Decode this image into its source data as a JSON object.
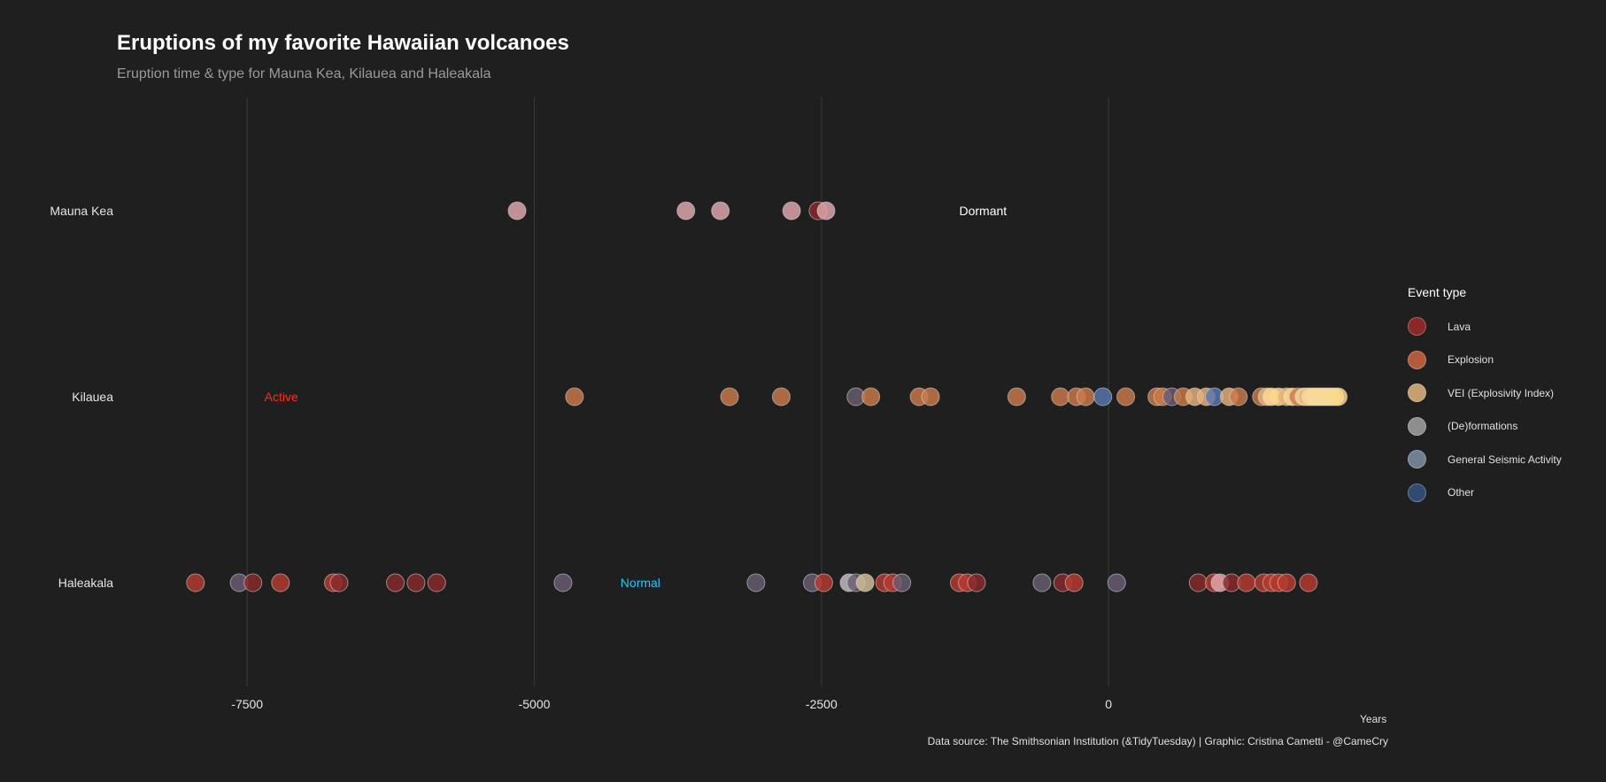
{
  "chart_data": {
    "type": "scatter",
    "title": "Eruptions of my favorite Hawaiian volcanoes",
    "subtitle": "Eruption time & type for Mauna Kea, Kilauea and Haleakala",
    "xlabel": "Years",
    "caption": "Data source: The Smithsonian Institution (&TidyTuesday) | Graphic: Cristina Cametti - @CameCry",
    "xlim": [
      -8650,
      2450
    ],
    "x_ticks": [
      -7500,
      -5000,
      -2500,
      0
    ],
    "x_tick_labels": [
      "-7500",
      "-5000",
      "-2500",
      "0"
    ],
    "grid": true,
    "categories": [
      "Mauna Kea",
      "Kilauea",
      "Haleakala"
    ],
    "legend": {
      "title": "Event type",
      "position": "right",
      "items": [
        {
          "label": "Lava",
          "color": "#8a2727"
        },
        {
          "label": "Explosion",
          "color": "#b25a3b"
        },
        {
          "label": "VEI (Explosivity Index)",
          "color": "#c3a06e"
        },
        {
          "label": "(De)formations",
          "color": "#8e8e8e"
        },
        {
          "label": "General Seismic Activity",
          "color": "#6e7f8f"
        },
        {
          "label": "Other",
          "color": "#324a70"
        }
      ]
    },
    "annotations": [
      {
        "text": "Dormant",
        "volcano": "Mauna Kea",
        "x": -1300,
        "color": "#ffffff"
      },
      {
        "text": "Active",
        "volcano": "Kilauea",
        "x": -7350,
        "color": "#ff2a1a"
      },
      {
        "text": "Normal",
        "volcano": "Haleakala",
        "x": -4250,
        "color": "#2ec4f5"
      }
    ],
    "point_colors": {
      "lava": "#b83a30",
      "lava_dark": "#8a2b2b",
      "explosion": "#cc7a4a",
      "vei": "#ffd98a",
      "vei_mid": "#e8b27a",
      "deform": "#6a5e74",
      "pink": "#e3aab0",
      "blue": "#5a78b0",
      "lightgrey": "#c8c0c8",
      "cream": "#d4c29a"
    },
    "series": [
      {
        "volcano": "Mauna Kea",
        "points": [
          {
            "x": -5150,
            "c": "pink"
          },
          {
            "x": -3680,
            "c": "pink"
          },
          {
            "x": -3380,
            "c": "pink"
          },
          {
            "x": -2760,
            "c": "pink"
          },
          {
            "x": -2530,
            "c": "lava_dark"
          },
          {
            "x": -2460,
            "c": "pink"
          }
        ]
      },
      {
        "volcano": "Kilauea",
        "points": [
          {
            "x": -4650,
            "c": "explosion"
          },
          {
            "x": -3300,
            "c": "explosion"
          },
          {
            "x": -2850,
            "c": "explosion"
          },
          {
            "x": -2200,
            "c": "deform"
          },
          {
            "x": -2070,
            "c": "explosion"
          },
          {
            "x": -1650,
            "c": "explosion"
          },
          {
            "x": -1550,
            "c": "explosion"
          },
          {
            "x": -800,
            "c": "explosion"
          },
          {
            "x": -420,
            "c": "explosion"
          },
          {
            "x": -280,
            "c": "explosion"
          },
          {
            "x": -200,
            "c": "explosion"
          },
          {
            "x": -50,
            "c": "blue"
          },
          {
            "x": 150,
            "c": "explosion"
          },
          {
            "x": 420,
            "c": "explosion"
          },
          {
            "x": 470,
            "c": "explosion"
          },
          {
            "x": 550,
            "c": "deform"
          },
          {
            "x": 650,
            "c": "explosion"
          },
          {
            "x": 750,
            "c": "vei_mid"
          },
          {
            "x": 850,
            "c": "vei_mid"
          },
          {
            "x": 920,
            "c": "blue"
          },
          {
            "x": 1050,
            "c": "vei_mid"
          },
          {
            "x": 1130,
            "c": "explosion"
          },
          {
            "x": 1330,
            "c": "explosion"
          },
          {
            "x": 1380,
            "c": "vei_mid"
          },
          {
            "x": 1420,
            "c": "vei"
          },
          {
            "x": 1480,
            "c": "vei"
          },
          {
            "x": 1550,
            "c": "vei_mid"
          },
          {
            "x": 1600,
            "c": "vei"
          },
          {
            "x": 1650,
            "c": "explosion"
          },
          {
            "x": 1700,
            "c": "vei"
          },
          {
            "x": 1730,
            "c": "vei_mid"
          },
          {
            "x": 1760,
            "c": "vei"
          },
          {
            "x": 1790,
            "c": "vei"
          },
          {
            "x": 1820,
            "c": "vei"
          },
          {
            "x": 1850,
            "c": "vei"
          },
          {
            "x": 1880,
            "c": "vei"
          },
          {
            "x": 1910,
            "c": "vei"
          },
          {
            "x": 1940,
            "c": "vei"
          },
          {
            "x": 1970,
            "c": "vei"
          },
          {
            "x": 2000,
            "c": "vei"
          }
        ]
      },
      {
        "volcano": "Haleakala",
        "points": [
          {
            "x": -7950,
            "c": "lava"
          },
          {
            "x": -7570,
            "c": "deform"
          },
          {
            "x": -7450,
            "c": "lava_dark"
          },
          {
            "x": -7210,
            "c": "lava"
          },
          {
            "x": -6750,
            "c": "lava"
          },
          {
            "x": -6700,
            "c": "lava_dark"
          },
          {
            "x": -6210,
            "c": "lava_dark"
          },
          {
            "x": -6030,
            "c": "lava_dark"
          },
          {
            "x": -5850,
            "c": "lava_dark"
          },
          {
            "x": -4750,
            "c": "deform"
          },
          {
            "x": -3070,
            "c": "deform"
          },
          {
            "x": -2580,
            "c": "deform"
          },
          {
            "x": -2480,
            "c": "lava"
          },
          {
            "x": -2260,
            "c": "lightgrey"
          },
          {
            "x": -2200,
            "c": "deform"
          },
          {
            "x": -2120,
            "c": "cream"
          },
          {
            "x": -1950,
            "c": "lava"
          },
          {
            "x": -1880,
            "c": "lava"
          },
          {
            "x": -1800,
            "c": "deform"
          },
          {
            "x": -1300,
            "c": "lava"
          },
          {
            "x": -1230,
            "c": "lava"
          },
          {
            "x": -1150,
            "c": "lava_dark"
          },
          {
            "x": -580,
            "c": "deform"
          },
          {
            "x": -400,
            "c": "lava_dark"
          },
          {
            "x": -300,
            "c": "lava"
          },
          {
            "x": 70,
            "c": "deform"
          },
          {
            "x": 780,
            "c": "lava_dark"
          },
          {
            "x": 920,
            "c": "lava"
          },
          {
            "x": 970,
            "c": "pink"
          },
          {
            "x": 1070,
            "c": "lava_dark"
          },
          {
            "x": 1200,
            "c": "lava"
          },
          {
            "x": 1350,
            "c": "lava"
          },
          {
            "x": 1420,
            "c": "lava"
          },
          {
            "x": 1480,
            "c": "lava"
          },
          {
            "x": 1550,
            "c": "lava"
          },
          {
            "x": 1740,
            "c": "lava"
          }
        ]
      }
    ]
  }
}
